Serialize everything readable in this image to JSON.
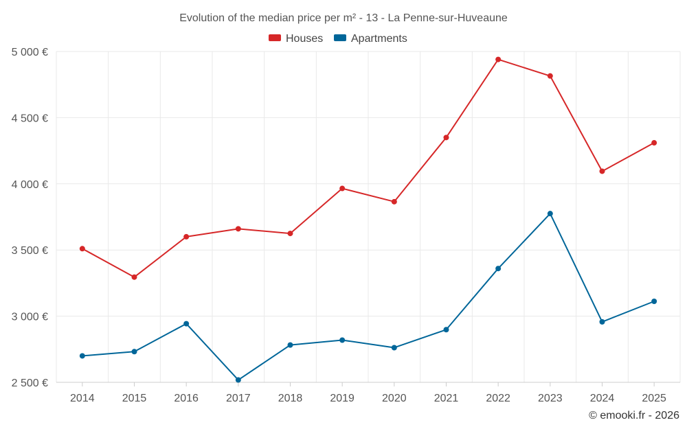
{
  "chart_data": {
    "type": "line",
    "title": "Evolution of the median price per m² - 13 - La Penne-sur-Huveaune",
    "categories": [
      "2014",
      "2015",
      "2016",
      "2017",
      "2018",
      "2019",
      "2020",
      "2021",
      "2022",
      "2023",
      "2024",
      "2025"
    ],
    "series": [
      {
        "name": "Houses",
        "color": "#d62728",
        "values": [
          3510,
          3295,
          3600,
          3660,
          3625,
          3965,
          3865,
          4350,
          4940,
          4815,
          4095,
          4310
        ]
      },
      {
        "name": "Apartments",
        "color": "#006699",
        "values": [
          2700,
          2732,
          2943,
          2518,
          2782,
          2819,
          2762,
          2898,
          3360,
          3775,
          2957,
          3112
        ]
      }
    ],
    "ylim": [
      2500,
      5000
    ],
    "yticks": [
      2500,
      3000,
      3500,
      4000,
      4500,
      5000
    ],
    "ytick_labels": [
      "2 500 €",
      "3 000 €",
      "3 500 €",
      "4 000 €",
      "4 500 €",
      "5 000 €"
    ],
    "xlabel": "",
    "ylabel": "",
    "grid": true,
    "legend": "top-center"
  },
  "credit": "© emooki.fr - 2026"
}
